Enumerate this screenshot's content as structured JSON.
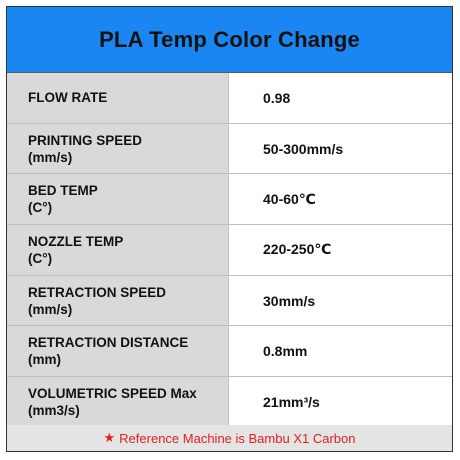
{
  "header": {
    "title": "PLA Temp Color Change"
  },
  "rows": [
    {
      "label_line1": "FLOW RATE",
      "label_line2": "",
      "value": "0.98"
    },
    {
      "label_line1": "PRINTING SPEED",
      "label_line2": "(mm/s)",
      "value": "50-300mm/s"
    },
    {
      "label_line1": "BED TEMP",
      "label_line2": "(C°)",
      "value": "40-60℃"
    },
    {
      "label_line1": "NOZZLE TEMP",
      "label_line2": "(C°)",
      "value": "220-250℃"
    },
    {
      "label_line1": "RETRACTION SPEED",
      "label_line2": "(mm/s)",
      "value": "30mm/s"
    },
    {
      "label_line1": "RETRACTION DISTANCE",
      "label_line2": "(mm)",
      "value": "0.8mm"
    },
    {
      "label_line1": "VOLUMETRIC SPEED Max",
      "label_line2": "(mm3/s)",
      "value": "21mm³/s"
    }
  ],
  "footer": {
    "star": "★",
    "text": "Reference Machine is Bambu X1 Carbon"
  },
  "colors": {
    "header_bg": "#1a86f2",
    "label_bg": "#d9d9d9",
    "footer_bg": "#e4e4e4",
    "footer_text": "#e02020"
  }
}
